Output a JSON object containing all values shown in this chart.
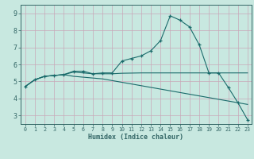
{
  "xlabel": "Humidex (Indice chaleur)",
  "bg_color": "#c8e8e0",
  "grid_color": "#c8a8b8",
  "line_color": "#1a6b6b",
  "tick_color": "#336666",
  "xlim_min": -0.5,
  "xlim_max": 23.4,
  "ylim_min": 2.5,
  "ylim_max": 9.5,
  "xticks": [
    0,
    1,
    2,
    3,
    4,
    5,
    6,
    7,
    8,
    9,
    10,
    11,
    12,
    13,
    14,
    15,
    16,
    17,
    18,
    19,
    20,
    21,
    22,
    23
  ],
  "yticks": [
    3,
    4,
    5,
    6,
    7,
    8,
    9
  ],
  "line1_x": [
    0,
    1,
    2,
    3,
    4,
    5,
    6,
    7,
    8,
    9,
    10,
    11,
    12,
    13,
    14,
    15,
    16,
    17,
    18,
    19,
    20,
    21,
    22,
    23
  ],
  "line1_y": [
    4.7,
    5.1,
    5.3,
    5.35,
    5.4,
    5.6,
    5.6,
    5.45,
    5.5,
    5.5,
    6.2,
    6.35,
    6.5,
    6.8,
    7.4,
    8.85,
    8.6,
    8.2,
    7.15,
    5.5,
    5.5,
    4.65,
    3.75,
    2.75
  ],
  "line2_x": [
    0,
    1,
    2,
    3,
    4,
    5,
    6,
    7,
    8,
    9,
    10,
    11,
    12,
    13,
    14,
    15,
    16,
    17,
    18,
    19,
    20,
    21,
    22,
    23
  ],
  "line2_y": [
    4.7,
    5.1,
    5.3,
    5.35,
    5.4,
    5.55,
    5.5,
    5.45,
    5.45,
    5.45,
    5.48,
    5.49,
    5.5,
    5.5,
    5.5,
    5.5,
    5.5,
    5.5,
    5.5,
    5.5,
    5.5,
    5.5,
    5.5,
    5.5
  ],
  "line3_x": [
    0,
    1,
    2,
    3,
    4,
    5,
    6,
    7,
    8,
    9,
    10,
    11,
    12,
    13,
    14,
    15,
    16,
    17,
    18,
    19,
    20,
    21,
    22,
    23
  ],
  "line3_y": [
    4.7,
    5.1,
    5.3,
    5.35,
    5.4,
    5.3,
    5.25,
    5.2,
    5.15,
    5.05,
    4.95,
    4.85,
    4.75,
    4.65,
    4.55,
    4.45,
    4.35,
    4.25,
    4.15,
    4.05,
    3.95,
    3.85,
    3.75,
    3.65
  ],
  "xlabel_fontsize": 6.0,
  "xtick_fontsize": 4.8,
  "ytick_fontsize": 6.0
}
